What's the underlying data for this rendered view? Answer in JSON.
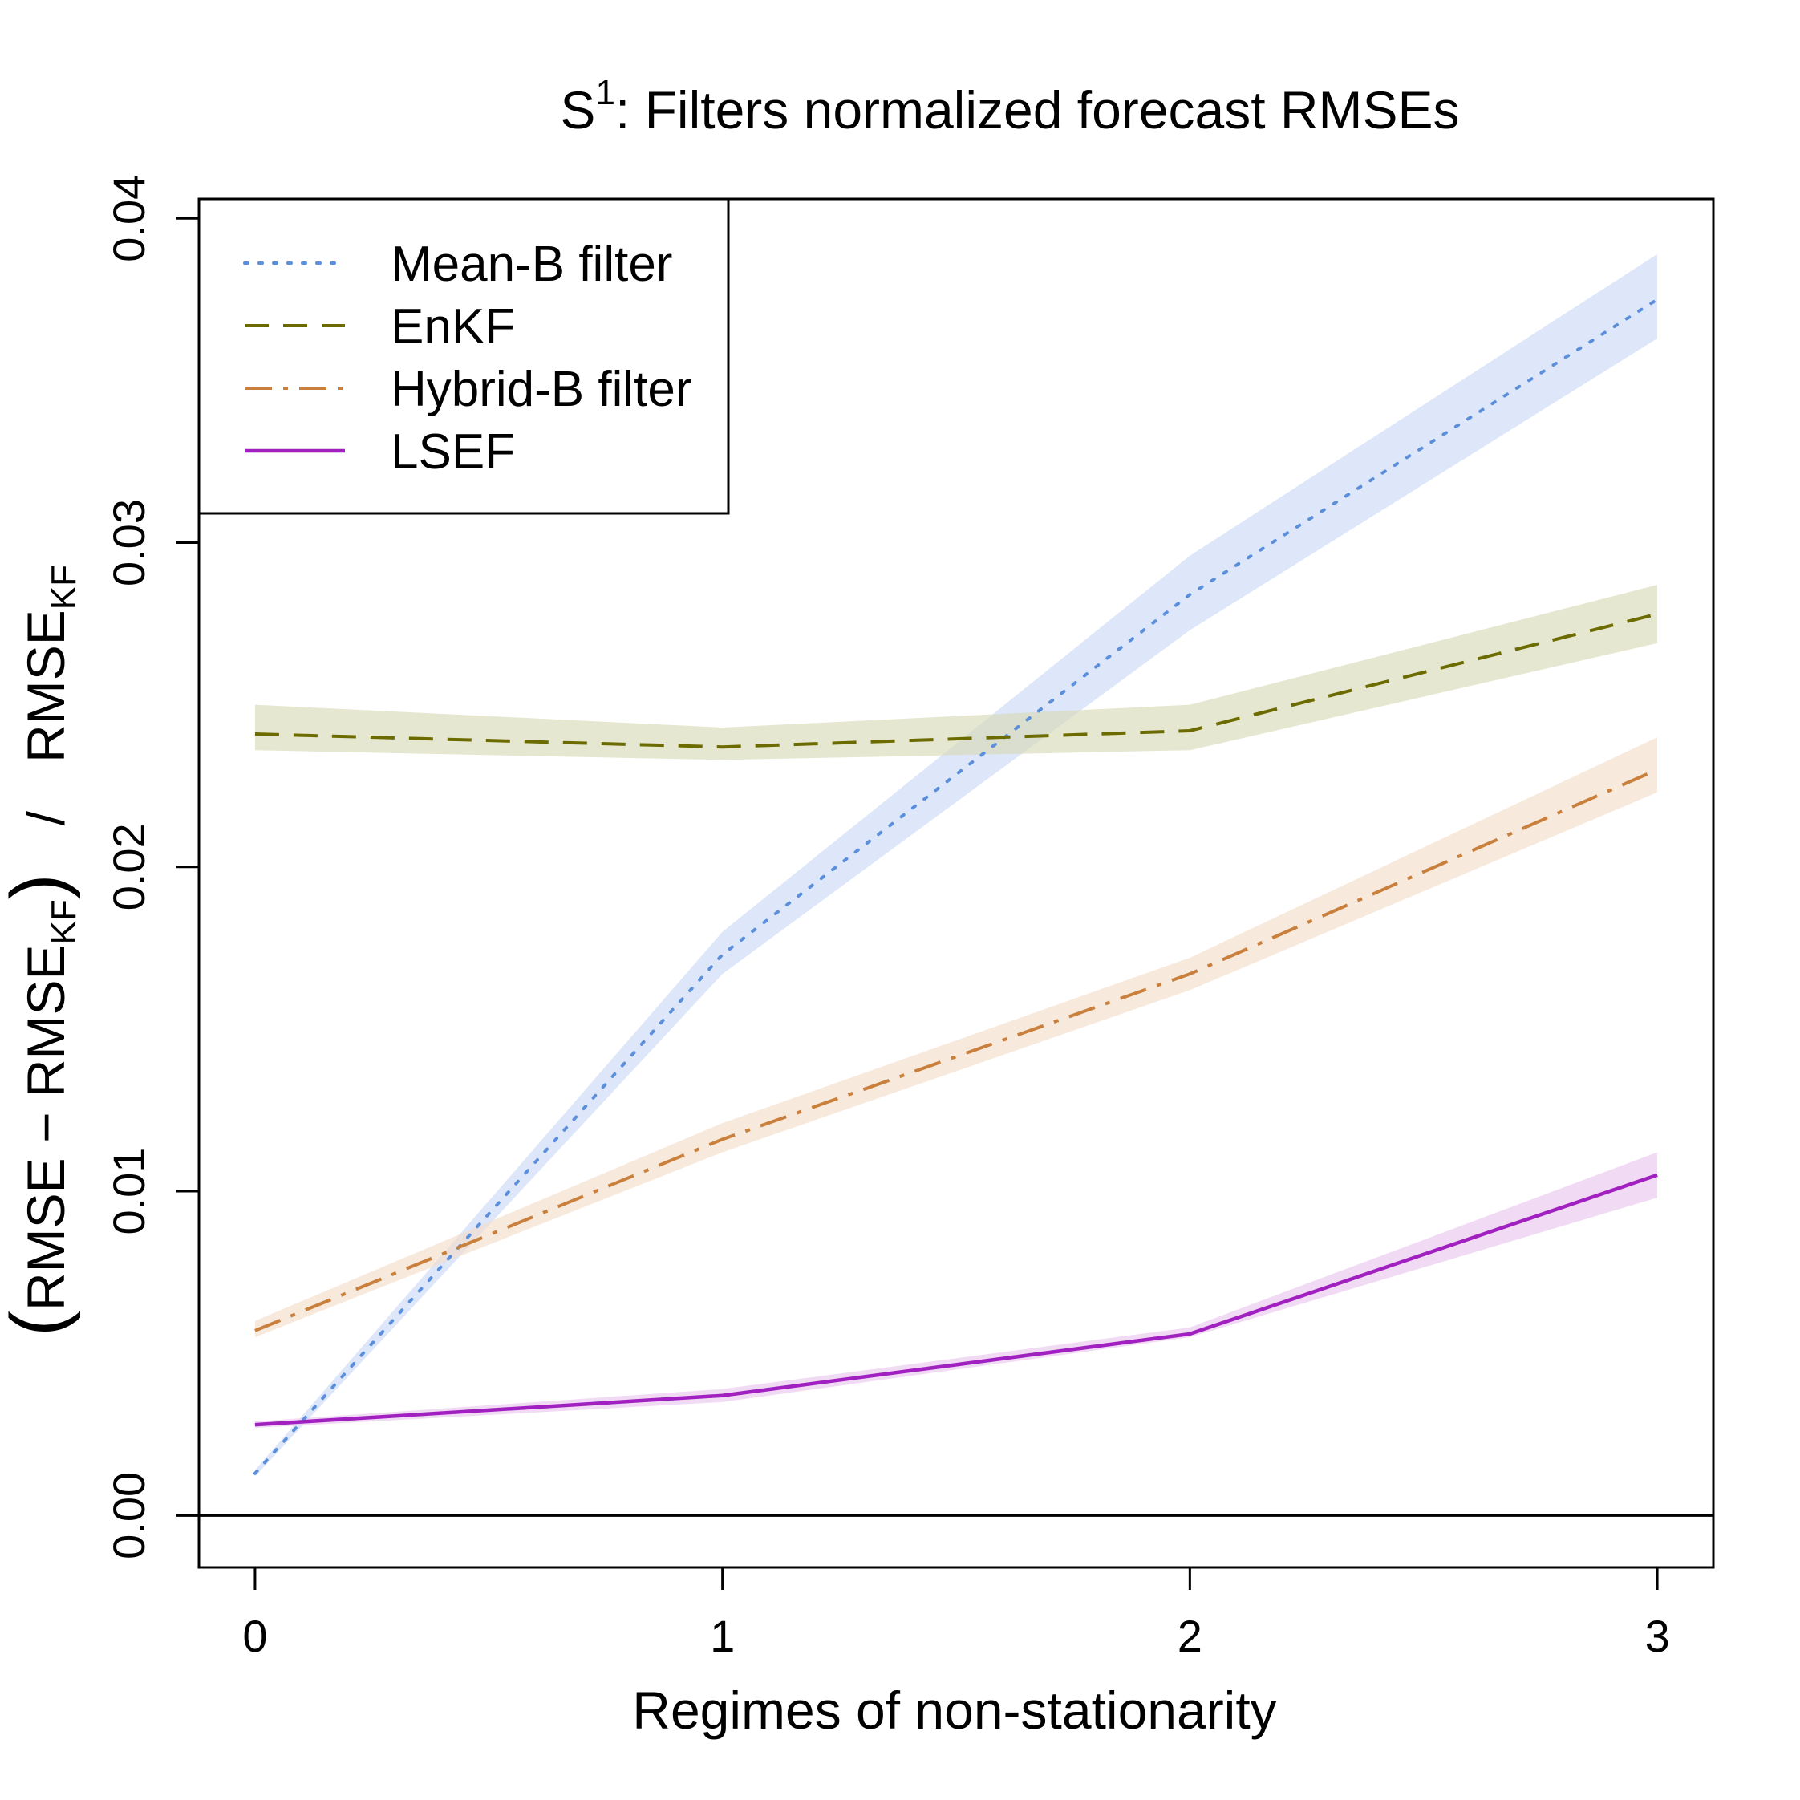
{
  "chart_data": {
    "type": "line",
    "title_main": "S",
    "title_superscript": "1",
    "title_rest": ":  Filters normalized forecast RMSEs",
    "xlabel": "Regimes of non-stationarity",
    "ylabel_parts": {
      "open_paren": "(",
      "rmse_a": "RMSE",
      "minus": " − ",
      "rmse_b": "RMSE",
      "sub_b": "KF",
      "close_paren": ")",
      "slash": "/",
      "rmse_c": "RMSE",
      "sub_c": "KF"
    },
    "x": [
      0,
      1,
      2,
      3
    ],
    "x_tick_labels": [
      "0",
      "1",
      "2",
      "3"
    ],
    "y_ticks": [
      0.0,
      0.01,
      0.02,
      0.03,
      0.04
    ],
    "y_tick_labels": [
      "0.00",
      "0.01",
      "0.02",
      "0.03",
      "0.04"
    ],
    "xlim": [
      -0.12,
      3.12
    ],
    "ylim": [
      -0.0016,
      0.0406
    ],
    "reference_line_y": 0.0,
    "legend_position": "top-left",
    "series": [
      {
        "name": "Mean-B filter",
        "line_style": "dotted",
        "color": "#5b8fdc",
        "band_color": "#c8d8f6",
        "values": [
          0.0013,
          0.0173,
          0.0284,
          0.0375
        ],
        "lower": [
          0.0012,
          0.0167,
          0.0273,
          0.0363
        ],
        "upper": [
          0.0014,
          0.018,
          0.0296,
          0.0389
        ]
      },
      {
        "name": "EnKF",
        "line_style": "dashed",
        "color": "#6b6b00",
        "band_color": "#d6d9b3",
        "values": [
          0.0241,
          0.0237,
          0.0242,
          0.0278
        ],
        "lower": [
          0.0236,
          0.0233,
          0.0236,
          0.0269
        ],
        "upper": [
          0.025,
          0.0243,
          0.025,
          0.0287
        ]
      },
      {
        "name": "Hybrid-B filter",
        "line_style": "dashdot",
        "color": "#c8803c",
        "band_color": "#f4dcc8",
        "values": [
          0.0057,
          0.0116,
          0.0167,
          0.023
        ],
        "lower": [
          0.0055,
          0.0112,
          0.0162,
          0.0223
        ],
        "upper": [
          0.006,
          0.0121,
          0.0172,
          0.024
        ]
      },
      {
        "name": "LSEF",
        "line_style": "solid",
        "color": "#a020c0",
        "band_color": "#e8c4ee",
        "values": [
          0.0028,
          0.0037,
          0.0056,
          0.0105
        ],
        "lower": [
          0.0027,
          0.0035,
          0.0055,
          0.0098
        ],
        "upper": [
          0.0029,
          0.0039,
          0.0058,
          0.0112
        ]
      }
    ]
  }
}
